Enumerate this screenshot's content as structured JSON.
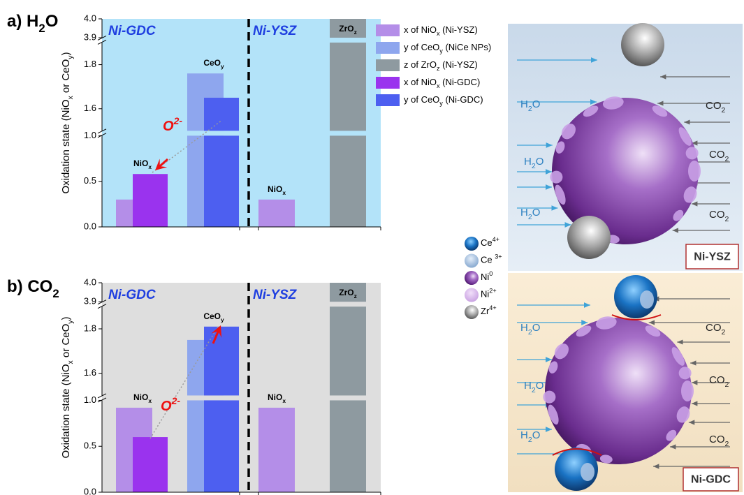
{
  "chart_data": [
    {
      "type": "bar",
      "title": "a) H2O",
      "ylabel": "Oxidation state (NiOx or CeOy)",
      "categories": [
        "NiOx",
        "CeOy",
        "NiOx",
        "ZrOz"
      ],
      "series": [
        {
          "name": "x of NiOx (Ni-YSZ)",
          "color": "#b48ee8",
          "values": [
            0.3,
            null,
            0.3,
            null
          ]
        },
        {
          "name": "y of CeOy (NiCe NPs)",
          "color": "#8ea6ee",
          "values": [
            null,
            1.76,
            null,
            null
          ]
        },
        {
          "name": "z of ZrOz (Ni-YSZ)",
          "color": "#8e9aa0",
          "values": [
            null,
            null,
            null,
            4.0
          ]
        },
        {
          "name": "x of NiOx (Ni-GDC)",
          "color": "#9a33ee",
          "values": [
            0.58,
            null,
            null,
            null
          ]
        },
        {
          "name": "y of CeOy (Ni-GDC)",
          "color": "#4d5ff0",
          "values": [
            null,
            1.65,
            null,
            null
          ]
        }
      ],
      "ylim": [
        0,
        4.0
      ],
      "ybreaks": [
        [
          1.0,
          1.5
        ],
        [
          1.9,
          3.9
        ]
      ],
      "yticks": [
        {
          "value": 0,
          "label": "0.0"
        },
        0.5,
        {
          "value": 1,
          "label": "1.0"
        },
        1.6,
        1.8,
        3.9,
        {
          "value": 4,
          "label": "4.0"
        }
      ],
      "annotations": [
        "Ni-GDC",
        "Ni-YSZ",
        "O2-"
      ],
      "background": "#b3e3f9",
      "legend": "upper right"
    },
    {
      "type": "bar",
      "title": "b) CO2",
      "ylabel": "Oxidation state (NiOx or CeOy)",
      "categories": [
        "NiOx",
        "CeOy",
        "NiOx",
        "ZrOz"
      ],
      "series": [
        {
          "color": "#b48ee8",
          "values": [
            0.92,
            null,
            0.92,
            null
          ]
        },
        {
          "color": "#8ea6ee",
          "values": [
            null,
            1.75,
            null,
            null
          ]
        },
        {
          "color": "#8e9aa0",
          "values": [
            null,
            null,
            null,
            4.0
          ]
        },
        {
          "color": "#9a33ee",
          "values": [
            0.6,
            null,
            null,
            null
          ]
        },
        {
          "color": "#4d5ff0",
          "values": [
            null,
            1.81,
            null,
            null
          ]
        }
      ],
      "ylim": [
        0,
        4.0
      ],
      "ybreaks": [
        [
          1.0,
          1.5
        ],
        [
          1.9,
          3.9
        ]
      ],
      "yticks": [
        {
          "value": 0,
          "label": "0.0"
        },
        0.5,
        {
          "value": 1,
          "label": "1.0"
        },
        1.6,
        1.8,
        3.9,
        {
          "value": 4,
          "label": "4.0"
        }
      ],
      "annotations": [
        "Ni-GDC",
        "Ni-YSZ",
        "O2-"
      ],
      "background": "#dedede"
    }
  ],
  "illustration": {
    "species": [
      "Ce4+",
      "Ce 3+",
      "Ni0",
      "Ni2+",
      "Zr4+"
    ],
    "panels": [
      {
        "label": "Ni-YSZ",
        "left": [
          "H2O",
          "H2O",
          "H2O"
        ],
        "right": [
          "CO2",
          "CO2",
          "CO2"
        ]
      },
      {
        "label": "Ni-GDC",
        "left": [
          "H2O",
          "H2O",
          "H2O"
        ],
        "right": [
          "CO2",
          "CO2",
          "CO2"
        ]
      }
    ]
  }
}
